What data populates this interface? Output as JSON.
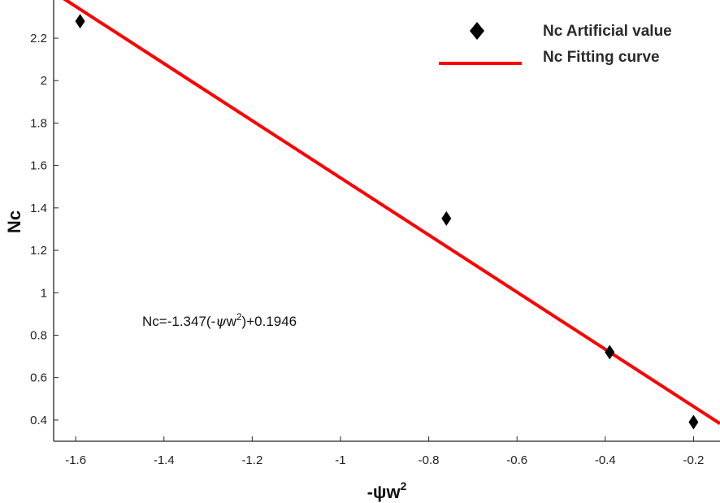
{
  "chart_data": {
    "type": "scatter",
    "xlabel": "-ψw",
    "xlabel_sup": "2",
    "ylabel": "Nc",
    "xlim": [
      -1.65,
      -0.14
    ],
    "ylim": [
      0.3,
      2.38
    ],
    "x_ticks": [
      -1.6,
      -1.4,
      -1.2,
      -1,
      -0.8,
      -0.6,
      -0.4,
      -0.2
    ],
    "x_tick_labels": [
      "-1.6",
      "-1.4",
      "-1.2",
      "-1",
      "-0.8",
      "-0.6",
      "-0.4",
      "-0.2"
    ],
    "y_ticks": [
      0.4,
      0.6,
      0.8,
      1,
      1.2,
      1.4,
      1.6,
      1.8,
      2,
      2.2
    ],
    "y_tick_labels": [
      "0.4",
      "0.6",
      "0.8",
      "1",
      "1.2",
      "1.4",
      "1.6",
      "1.8",
      "2",
      "2.2"
    ],
    "series": [
      {
        "name": "Nc Artificial value",
        "kind": "points",
        "marker": "diamond",
        "color": "#000000",
        "x": [
          -1.59,
          -0.76,
          -0.39,
          -0.2
        ],
        "y": [
          2.28,
          1.35,
          0.72,
          0.39
        ]
      },
      {
        "name": "Nc Fitting curve",
        "kind": "line",
        "color": "#ff0000",
        "slope": -1.347,
        "intercept": 0.1946
      }
    ],
    "annotation": {
      "parts": [
        "Nc=-1.347(-",
        "ψ",
        "w",
        "2",
        ")+0.1946"
      ]
    },
    "legend_position": "top-right",
    "grid": false
  }
}
